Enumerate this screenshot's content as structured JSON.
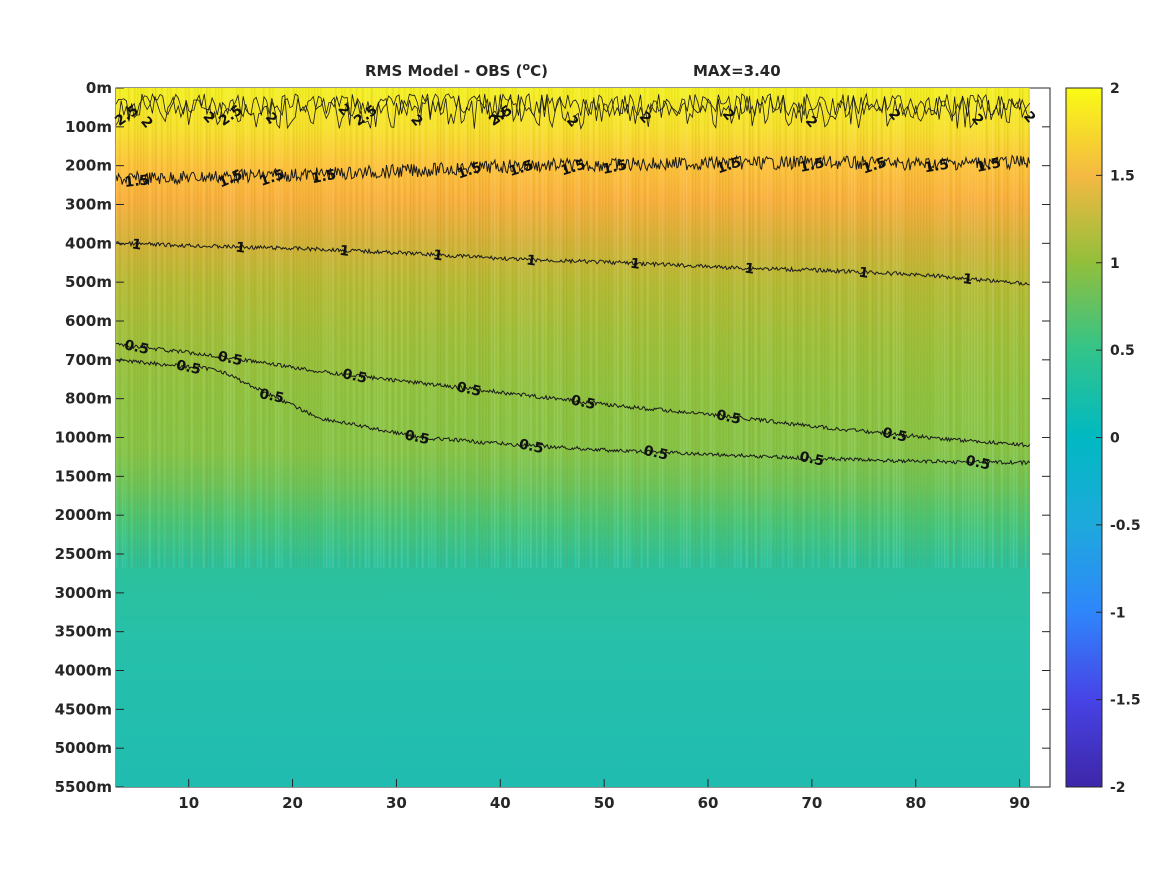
{
  "figure": {
    "title_main": "RMS Model - OBS (",
    "title_unit_sup": "o",
    "title_unit_end": "C)",
    "title_max": "MAX=3.40"
  },
  "chart_data": {
    "type": "heatmap",
    "title": "RMS Model - OBS (oC)",
    "annotation": "MAX=3.40",
    "xlim": [
      3,
      91
    ],
    "x_ticks": [
      10,
      20,
      30,
      40,
      50,
      60,
      70,
      80,
      90
    ],
    "y_tick_labels": [
      "0m",
      "100m",
      "200m",
      "300m",
      "400m",
      "500m",
      "600m",
      "700m",
      "800m",
      "1000m",
      "1500m",
      "2000m",
      "2500m",
      "3000m",
      "3500m",
      "4000m",
      "4500m",
      "5000m",
      "5500m"
    ],
    "colorbar": {
      "range": [
        -2,
        2
      ],
      "ticks": [
        "2",
        "1.5",
        "1",
        "0.5",
        "0",
        "-0.5",
        "-1",
        "-1.5",
        "-2"
      ],
      "colormap": "parula"
    },
    "contour_levels": [
      2.5,
      2,
      1.5,
      1,
      0.5
    ],
    "contours": [
      {
        "level": "1.5",
        "depth_index": [
          2.35,
          2.28,
          2.22,
          2.12,
          2.0,
          1.97,
          1.93,
          1.92,
          1.95,
          1.9
        ]
      },
      {
        "level": "1",
        "depth_index": [
          4.0,
          4.08,
          4.15,
          4.27,
          4.42,
          4.5,
          4.62,
          4.7,
          4.82,
          5.05
        ]
      },
      {
        "level": "0.5",
        "depth_index": [
          7.0,
          7.25,
          8.5,
          9.0,
          9.2,
          9.35,
          9.45,
          9.55,
          9.62,
          9.65
        ]
      },
      {
        "level": "0.5",
        "depth_index": [
          6.6,
          6.9,
          7.3,
          7.6,
          7.9,
          8.2,
          8.45,
          8.75,
          9.0,
          9.2
        ]
      }
    ],
    "contour_label_positions": {
      "1.5": [
        5,
        14,
        18,
        23,
        37,
        42,
        47,
        51,
        62,
        70,
        76,
        82,
        87
      ],
      "1": [
        5,
        15,
        25,
        34,
        43,
        53,
        64,
        75,
        85
      ],
      "0.5": [
        5,
        10,
        14,
        18,
        26,
        32,
        37,
        43,
        48,
        55,
        62,
        70,
        78,
        86
      ],
      "2": [
        6,
        12,
        18,
        25,
        32,
        40,
        47,
        54,
        62,
        70,
        78,
        86,
        91
      ],
      "2.5": [
        4,
        14,
        27,
        40
      ]
    }
  }
}
